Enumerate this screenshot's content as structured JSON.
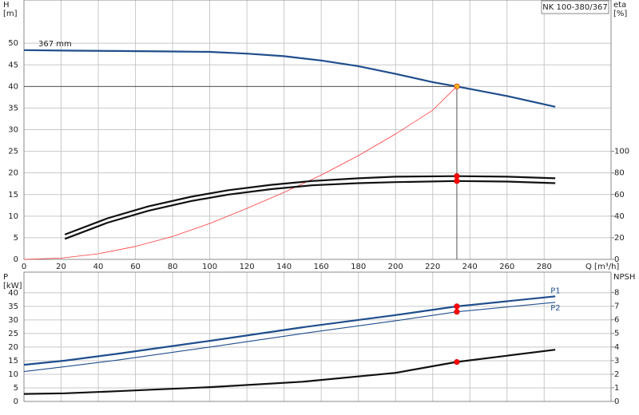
{
  "chart_data": [
    {
      "type": "line",
      "annotation": "NK 100-380/367",
      "ylabel": [
        "H",
        "[m]"
      ],
      "y2label": [
        "eta",
        "[%]"
      ],
      "xlabel": "Q [m³/h]",
      "xlim": [
        0,
        316
      ],
      "xticks": [
        0,
        20,
        40,
        60,
        80,
        100,
        120,
        140,
        160,
        180,
        200,
        220,
        240,
        260,
        280
      ],
      "ylim": [
        0,
        60
      ],
      "yticks": [
        0,
        5,
        10,
        15,
        20,
        25,
        30,
        35,
        40,
        45,
        50
      ],
      "y2lim": [
        0,
        240
      ],
      "y2ticks": [
        0,
        20,
        40,
        60,
        80,
        100
      ],
      "grid": true,
      "duty_point": {
        "x": 233,
        "y": 40
      },
      "series": [
        {
          "name": "367 mm",
          "color": "#1f4e8c",
          "width": 2.2,
          "point": 40,
          "point_color": "#f5c518",
          "x": [
            0,
            22,
            50,
            80,
            100,
            120,
            140,
            160,
            180,
            200,
            220,
            233,
            260,
            286
          ],
          "values": [
            48.4,
            48.3,
            48.2,
            48.1,
            48.0,
            47.6,
            47.0,
            46.0,
            44.7,
            42.9,
            41.0,
            40.0,
            37.8,
            35.3
          ]
        },
        {
          "color": "#ff3b3b",
          "width": 0.8,
          "x": [
            0,
            20,
            40,
            60,
            80,
            100,
            120,
            140,
            160,
            180,
            200,
            220,
            233
          ],
          "values": [
            0,
            0.3,
            1.3,
            3.0,
            5.3,
            8.3,
            11.8,
            15.5,
            19.5,
            24,
            29,
            34.5,
            40
          ]
        },
        {
          "color": "#111111",
          "width": 2.2,
          "axis": "y2",
          "point": 77,
          "point_color": "#ff0000",
          "x": [
            22,
            45,
            67,
            90,
            110,
            133,
            155,
            180,
            200,
            233,
            260,
            286
          ],
          "values": [
            23,
            38,
            49,
            58,
            64,
            69,
            72.5,
            75,
            76.5,
            77,
            76.5,
            75
          ]
        },
        {
          "color": "#111111",
          "width": 2.2,
          "axis": "y2",
          "point": 72.5,
          "point_color": "#ff0000",
          "x": [
            22,
            45,
            67,
            90,
            110,
            133,
            155,
            180,
            200,
            233,
            260,
            286
          ],
          "values": [
            19,
            34,
            45,
            54,
            60,
            65,
            68.5,
            70.5,
            71.5,
            72.5,
            72,
            70.5
          ]
        }
      ]
    },
    {
      "type": "line",
      "ylabel": [
        "P",
        "[kW]"
      ],
      "y2label": [
        "NPSH"
      ],
      "xlim": [
        0,
        316
      ],
      "ylim": [
        0,
        47.6
      ],
      "yticks": [
        0,
        5,
        10,
        15,
        20,
        25,
        30,
        35,
        40
      ],
      "y2lim": [
        0,
        9.5
      ],
      "y2ticks": [
        0,
        1,
        2,
        3,
        4,
        5,
        6,
        7,
        8
      ],
      "grid": true,
      "duty_point": {
        "x": 233
      },
      "series": [
        {
          "name": "P1",
          "color": "#1f4e8c",
          "width": 2.2,
          "point": 35,
          "point_color": "#ff0000",
          "x": [
            0,
            22,
            50,
            100,
            150,
            200,
            233,
            286
          ],
          "values": [
            13.5,
            15,
            17.5,
            22.3,
            27.3,
            31.8,
            35,
            38.7
          ]
        },
        {
          "name": "P2",
          "color": "#1f4e8c",
          "width": 1.1,
          "point": 33,
          "point_color": "#ff0000",
          "x": [
            0,
            22,
            50,
            100,
            150,
            200,
            233,
            286
          ],
          "values": [
            11,
            12.8,
            15.2,
            20,
            25,
            29.7,
            33,
            36.5
          ]
        },
        {
          "color": "#111111",
          "width": 2.2,
          "axis": "y2",
          "point": 2.9,
          "point_color": "#ff0000",
          "x": [
            0,
            22,
            50,
            100,
            150,
            200,
            233,
            286
          ],
          "values": [
            0.55,
            0.6,
            0.75,
            1.05,
            1.45,
            2.1,
            2.9,
            3.8
          ]
        }
      ]
    }
  ]
}
